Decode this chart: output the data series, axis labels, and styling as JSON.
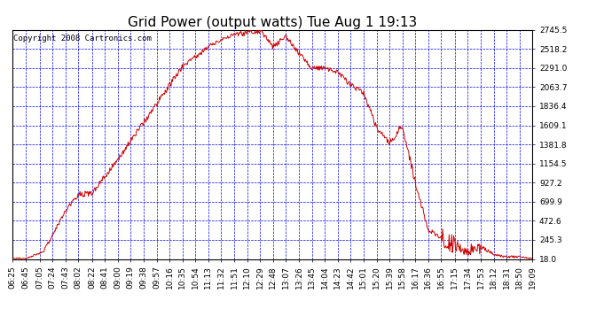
{
  "title": "Grid Power (output watts) Tue Aug 1 19:13",
  "copyright": "Copyright 2008 Cartronics.com",
  "background_color": "#FFFFFF",
  "plot_bg_color": "#FFFFFF",
  "grid_color": "#0000FF",
  "line_color": "#CC0000",
  "x_labels": [
    "06:25",
    "06:45",
    "07:05",
    "07:24",
    "07:43",
    "08:02",
    "08:22",
    "08:41",
    "09:00",
    "09:19",
    "09:38",
    "09:57",
    "10:16",
    "10:35",
    "10:54",
    "11:13",
    "11:32",
    "11:51",
    "12:10",
    "12:29",
    "12:48",
    "13:07",
    "13:26",
    "13:45",
    "14:04",
    "14:23",
    "14:42",
    "15:01",
    "15:20",
    "15:39",
    "15:58",
    "16:17",
    "16:36",
    "16:55",
    "17:15",
    "17:34",
    "17:53",
    "18:12",
    "18:31",
    "18:50",
    "19:09"
  ],
  "y_tick_labels": [
    "18.0",
    "245.3",
    "472.6",
    "699.9",
    "927.2",
    "1154.5",
    "1381.8",
    "1609.1",
    "1836.4",
    "2063.7",
    "2291.0",
    "2518.2",
    "2745.5"
  ],
  "y_ticks": [
    18.0,
    245.3,
    472.6,
    699.9,
    927.2,
    1154.5,
    1381.8,
    1609.1,
    1836.4,
    2063.7,
    2291.0,
    2518.2,
    2745.5
  ],
  "ymin": 18.0,
  "ymax": 2745.5,
  "title_fontsize": 11,
  "tick_fontsize": 6.5,
  "copyright_fontsize": 6.5,
  "figwidth": 6.9,
  "figheight": 3.75,
  "dpi": 100
}
